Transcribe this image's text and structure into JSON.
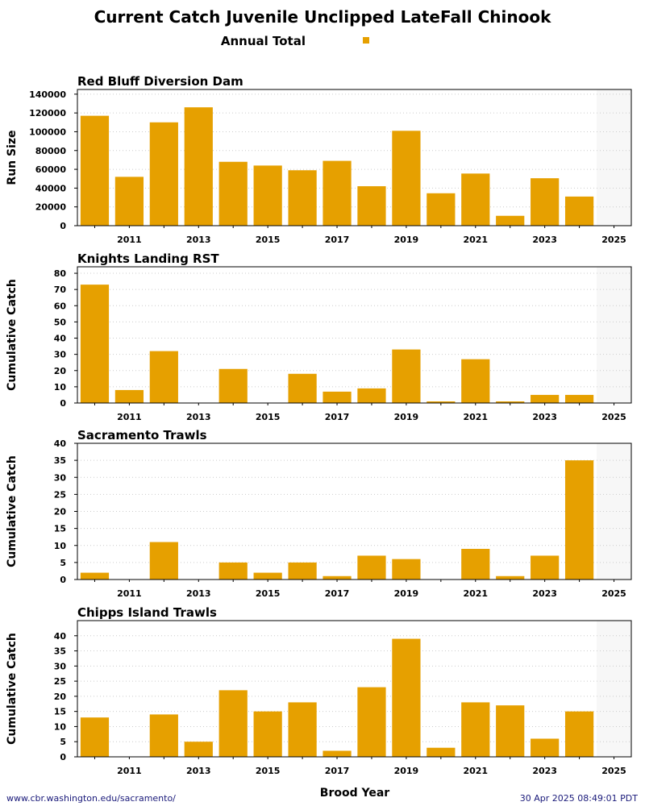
{
  "chart_data": {
    "title": "Current Catch Juvenile Unclipped LateFall Chinook",
    "legend": {
      "label": "Annual Total",
      "color": "#e6a000",
      "placement": "top-center"
    },
    "xlabel": "Brood Year",
    "x_tick_labels": [
      "2011",
      "2013",
      "2015",
      "2017",
      "2019",
      "2021",
      "2023",
      "2025"
    ],
    "x_years": [
      2010,
      2011,
      2012,
      2013,
      2014,
      2015,
      2016,
      2017,
      2018,
      2019,
      2020,
      2021,
      2022,
      2023,
      2024,
      2025
    ],
    "current_year": 2025,
    "bar_color": "#e6a000",
    "shade_color": "#f7f7f7",
    "grid_color": "#cccccc",
    "panels": [
      {
        "type": "bar",
        "title": "Red Bluff Diversion Dam",
        "ylabel": "Run Size",
        "ylim": [
          0,
          145000
        ],
        "yticks": [
          0,
          20000,
          40000,
          60000,
          80000,
          100000,
          120000,
          140000
        ],
        "values": [
          117000,
          52000,
          110000,
          126000,
          68000,
          64000,
          59000,
          69000,
          42000,
          101000,
          34500,
          55500,
          10500,
          50500,
          31000,
          null
        ]
      },
      {
        "type": "bar",
        "title": "Knights Landing RST",
        "ylabel": "Cumulative Catch",
        "ylim": [
          0,
          84
        ],
        "yticks": [
          0,
          10,
          20,
          30,
          40,
          50,
          60,
          70,
          80
        ],
        "values": [
          73,
          8,
          32,
          0,
          21,
          0,
          18,
          7,
          9,
          33,
          1,
          27,
          1,
          5,
          5,
          null
        ]
      },
      {
        "type": "bar",
        "title": "Sacramento Trawls",
        "ylabel": "Cumulative Catch",
        "ylim": [
          0,
          40
        ],
        "yticks": [
          0,
          5,
          10,
          15,
          20,
          25,
          30,
          35,
          40
        ],
        "values": [
          2,
          0,
          11,
          0,
          5,
          2,
          5,
          1,
          7,
          6,
          0,
          9,
          1,
          7,
          35,
          null
        ]
      },
      {
        "type": "bar",
        "title": "Chipps Island Trawls",
        "ylabel": "Cumulative Catch",
        "ylim": [
          0,
          45
        ],
        "yticks": [
          0,
          5,
          10,
          15,
          20,
          25,
          30,
          35,
          40
        ],
        "values": [
          13,
          0,
          14,
          5,
          22,
          15,
          18,
          2,
          23,
          39,
          3,
          18,
          17,
          6,
          15,
          null
        ]
      }
    ]
  },
  "footer": {
    "url": "www.cbr.washington.edu/sacramento/",
    "timestamp": "30 Apr 2025 08:49:01 PDT"
  }
}
